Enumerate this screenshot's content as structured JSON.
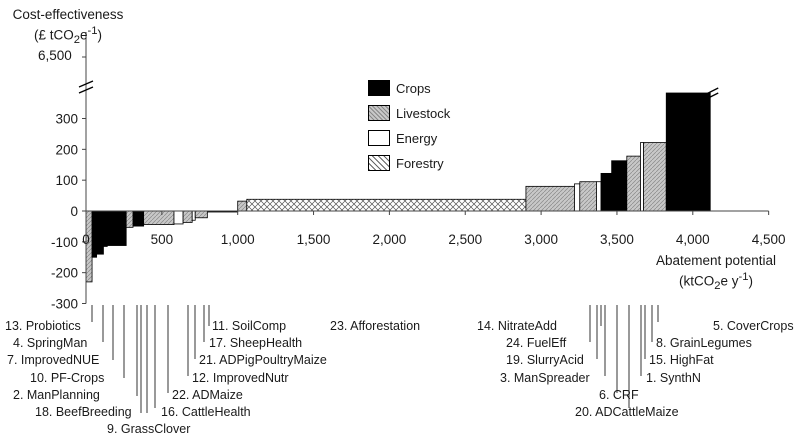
{
  "chart_data": {
    "type": "bar",
    "subtype": "marginal-abatement-cost-curve",
    "ylabel_line1": "Cost-effectiveness",
    "ylabel_line2": "(£ tCO2e-1)",
    "ylabel_unit_html": "(£ tCO<sub>2</sub>e<sup>-1</sup>)",
    "xlabel_line1": "Abatement potential",
    "xlabel_unit_html": "(ktCO<sub>2</sub>e y<sup>-1</sup>)",
    "xlabel_line2": "(ktCO2e y-1)",
    "y_break_label": "6,500",
    "yticks": [
      -300,
      -200,
      -100,
      0,
      100,
      200,
      300
    ],
    "ytick_labels": [
      "-300",
      "-200",
      "-100",
      "0",
      "100",
      "200",
      "300"
    ],
    "xticks": [
      0,
      500,
      1000,
      1500,
      2000,
      2500,
      3000,
      3500,
      4000,
      4500
    ],
    "xtick_labels": [
      "0",
      "500",
      "1,000",
      "1,500",
      "2,000",
      "2,500",
      "3,000",
      "3,500",
      "4,000",
      "4,500"
    ],
    "ylim": [
      -300,
      390
    ],
    "xlim": [
      0,
      4500
    ],
    "grid": false,
    "legend_position": "upper-center",
    "legend": [
      {
        "name": "Crops",
        "category": "crops"
      },
      {
        "name": "Livestock",
        "category": "livestock"
      },
      {
        "name": "Energy",
        "category": "energy"
      },
      {
        "name": "Forestry",
        "category": "forestry"
      }
    ],
    "colors": {
      "crops": "#000000",
      "livestock": "#bfbfbf",
      "energy": "#ffffff",
      "forestry": "#d9d9d9"
    },
    "measures": [
      {
        "id": 13,
        "name": "Probiotics",
        "x0": 0,
        "x1": 40,
        "y": -230,
        "category": "livestock"
      },
      {
        "id": 4,
        "name": "SpringMan",
        "x0": 40,
        "x1": 70,
        "y": -150,
        "category": "crops"
      },
      {
        "id": 7,
        "name": "ImprovedNUE",
        "x0": 70,
        "x1": 115,
        "y": -140,
        "category": "crops"
      },
      {
        "id": 10,
        "name": "PF-Crops",
        "x0": 115,
        "x1": 140,
        "y": -115,
        "category": "crops"
      },
      {
        "id": 2,
        "name": "ManPlanning",
        "x0": 140,
        "x1": 265,
        "y": -112,
        "category": "crops"
      },
      {
        "id": 18,
        "name": "BeefBreeding",
        "x0": 265,
        "x1": 310,
        "y": -53,
        "category": "livestock"
      },
      {
        "id": 9,
        "name": "GrassClover",
        "x0": 310,
        "x1": 380,
        "y": -49,
        "category": "crops"
      },
      {
        "id": 16,
        "name": "CattleHealth",
        "x0": 380,
        "x1": 580,
        "y": -44,
        "category": "livestock"
      },
      {
        "id": 22,
        "name": "ADMaize",
        "x0": 580,
        "x1": 640,
        "y": -42,
        "category": "energy"
      },
      {
        "id": 12,
        "name": "ImprovedNutr",
        "x0": 640,
        "x1": 700,
        "y": -37,
        "category": "livestock"
      },
      {
        "id": 21,
        "name": "ADPigPoultryMaize",
        "x0": 700,
        "x1": 720,
        "y": -30,
        "category": "energy"
      },
      {
        "id": 17,
        "name": "SheepHealth",
        "x0": 720,
        "x1": 800,
        "y": -22,
        "category": "livestock"
      },
      {
        "id": 11,
        "name": "SoilComp",
        "x0": 800,
        "x1": 1000,
        "y": -3,
        "category": "crops"
      },
      {
        "id": 0,
        "name": "",
        "x0": 1000,
        "x1": 1060,
        "y": 32,
        "category": "livestock"
      },
      {
        "id": 23,
        "name": "Afforestation",
        "x0": 1060,
        "x1": 2900,
        "y": 38,
        "category": "forestry"
      },
      {
        "id": 14,
        "name": "NitrateAdd",
        "x0": 2900,
        "x1": 3220,
        "y": 80,
        "category": "livestock"
      },
      {
        "id": 24,
        "name": "FuelEff",
        "x0": 3220,
        "x1": 3255,
        "y": 88,
        "category": "energy"
      },
      {
        "id": 19,
        "name": "SlurryAcid",
        "x0": 3255,
        "x1": 3365,
        "y": 95,
        "category": "livestock"
      },
      {
        "id": 3,
        "name": "ManSpreader",
        "x0": 3365,
        "x1": 3395,
        "y": 95,
        "category": "energy"
      },
      {
        "id": 6,
        "name": "CRF",
        "x0": 3395,
        "x1": 3465,
        "y": 122,
        "category": "crops"
      },
      {
        "id": 20,
        "name": "ADCattleMaize",
        "x0": 3465,
        "x1": 3565,
        "y": 163,
        "category": "crops"
      },
      {
        "id": 1,
        "name": "SynthN",
        "x0": 3565,
        "x1": 3655,
        "y": 178,
        "category": "livestock"
      },
      {
        "id": 15,
        "name": "HighFat",
        "x0": 3655,
        "x1": 3675,
        "y": 222,
        "category": "energy"
      },
      {
        "id": 8,
        "name": "GrainLegumes",
        "x0": 3675,
        "x1": 3825,
        "y": 222,
        "category": "livestock"
      },
      {
        "id": 5,
        "name": "CoverCrops",
        "x0": 3825,
        "x1": 4115,
        "y": 6500,
        "category": "crops"
      }
    ],
    "label_lines": [
      {
        "text": "13. Probiotics"
      },
      {
        "text": "4. SpringMan"
      },
      {
        "text": "7. ImprovedNUE"
      },
      {
        "text": "10. PF-Crops"
      },
      {
        "text": "2. ManPlanning"
      },
      {
        "text": "18. BeefBreeding"
      },
      {
        "text": "9. GrassClover"
      },
      {
        "text": "16. CattleHealth"
      },
      {
        "text": "22. ADMaize"
      },
      {
        "text": "12. ImprovedNutr"
      },
      {
        "text": "21. ADPigPoultryMaize"
      },
      {
        "text": "17. SheepHealth"
      },
      {
        "text": "11. SoilComp"
      },
      {
        "text": "23. Afforestation"
      },
      {
        "text": "14. NitrateAdd"
      },
      {
        "text": "24. FuelEff"
      },
      {
        "text": "19. SlurryAcid"
      },
      {
        "text": "3. ManSpreader"
      },
      {
        "text": "6. CRF"
      },
      {
        "text": "20. ADCattleMaize"
      },
      {
        "text": "1. SynthN"
      },
      {
        "text": "15. HighFat"
      },
      {
        "text": "8. GrainLegumes"
      },
      {
        "text": "5. CoverCrops"
      }
    ]
  }
}
